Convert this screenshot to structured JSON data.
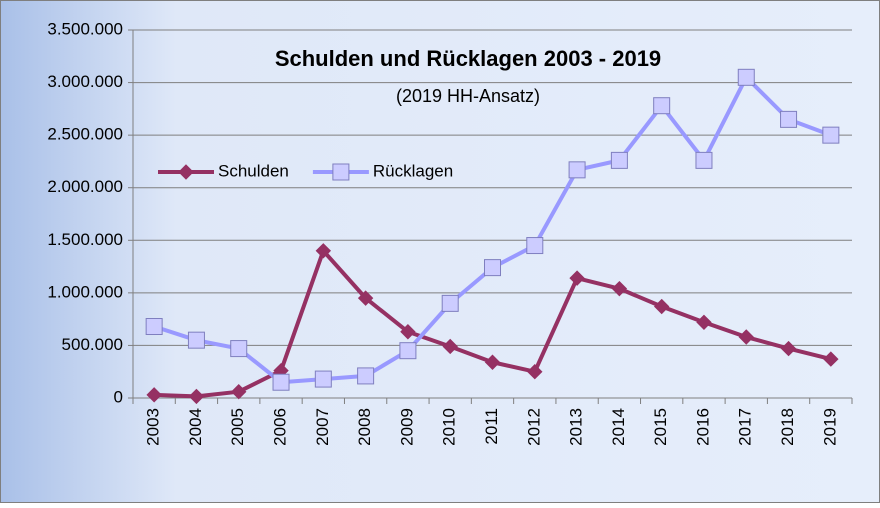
{
  "chart_data": {
    "type": "line",
    "title": "Schulden und Rücklagen 2003 - 2019",
    "subtitle": "(2019 HH-Ansatz)",
    "categories": [
      "2003",
      "2004",
      "2005",
      "2006",
      "2007",
      "2008",
      "2009",
      "2010",
      "2011",
      "2012",
      "2013",
      "2014",
      "2015",
      "2016",
      "2017",
      "2018",
      "2019"
    ],
    "series": [
      {
        "name": "Schulden",
        "color": "#953163",
        "marker": "diamond",
        "values": [
          30000,
          15000,
          60000,
          260000,
          1400000,
          950000,
          630000,
          490000,
          340000,
          250000,
          1140000,
          1040000,
          870000,
          720000,
          580000,
          470000,
          370000
        ]
      },
      {
        "name": "Rücklagen",
        "color": "#9999ff",
        "marker": "square",
        "values": [
          680000,
          550000,
          470000,
          150000,
          180000,
          210000,
          450000,
          900000,
          1240000,
          1450000,
          2170000,
          2260000,
          2780000,
          2260000,
          3050000,
          2650000,
          2500000
        ]
      }
    ],
    "ylim": [
      0,
      3500000
    ],
    "yticks": [
      0,
      {
        "value": 500000,
        "label": "500.000"
      },
      {
        "value": 1000000,
        "label": "1.000.000"
      },
      {
        "value": 1500000,
        "label": "1.500.000"
      },
      {
        "value": 2000000,
        "label": "2.000.000"
      },
      {
        "value": 2500000,
        "label": "2.500.000"
      },
      {
        "value": 3000000,
        "label": "3.000.000"
      },
      {
        "value": 3500000,
        "label": "3.500.000"
      }
    ],
    "grid": true,
    "legend": "center-left"
  }
}
